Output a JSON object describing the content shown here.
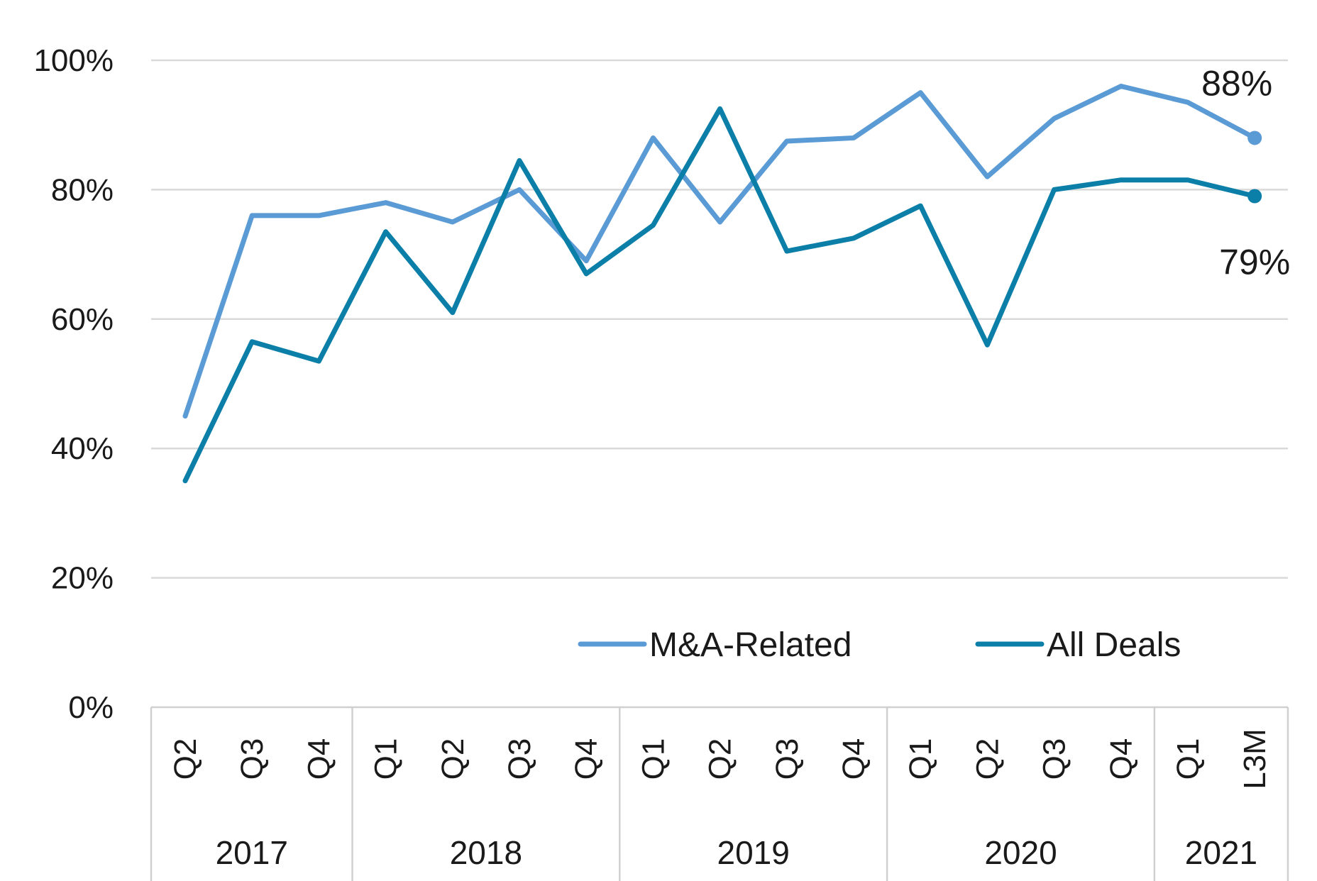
{
  "chart_data": {
    "type": "line",
    "title": "",
    "xlabel": "",
    "ylabel": "",
    "ylim": [
      0,
      100
    ],
    "yticks": [
      "0%",
      "20%",
      "40%",
      "60%",
      "80%",
      "100%"
    ],
    "yticks_values": [
      0,
      20,
      40,
      60,
      80,
      100
    ],
    "grid": "horizontal",
    "categories": [
      "Q2",
      "Q3",
      "Q4",
      "Q1",
      "Q2",
      "Q3",
      "Q4",
      "Q1",
      "Q2",
      "Q3",
      "Q4",
      "Q1",
      "Q2",
      "Q3",
      "Q4",
      "Q1",
      "L3M"
    ],
    "year_groups": [
      {
        "label": "2017",
        "span": 3
      },
      {
        "label": "2018",
        "span": 4
      },
      {
        "label": "2019",
        "span": 4
      },
      {
        "label": "2020",
        "span": 4
      },
      {
        "label": "2021",
        "span": 2
      }
    ],
    "series": [
      {
        "name": "M&A-Related",
        "color": "#5b9bd5",
        "values": [
          45,
          76,
          76,
          78,
          75,
          80,
          69,
          88,
          75,
          87.5,
          88,
          95,
          82,
          91,
          96,
          93.5,
          88
        ],
        "end_label": "88%"
      },
      {
        "name": "All Deals",
        "color": "#0b7fa8",
        "values": [
          35,
          56.5,
          53.5,
          73.5,
          61,
          84.5,
          67,
          74.5,
          92.5,
          70.5,
          72.5,
          77.5,
          56,
          80,
          81.5,
          81.5,
          79
        ],
        "end_label": "79%"
      }
    ],
    "legend_position": "bottom-right"
  }
}
